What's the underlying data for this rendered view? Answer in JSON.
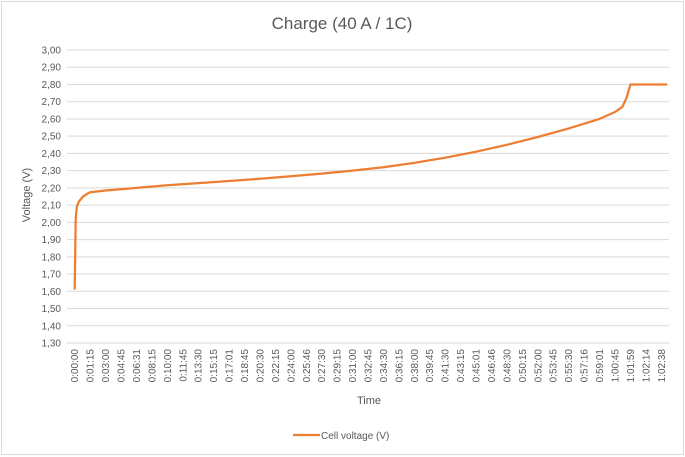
{
  "chart_data": {
    "type": "line",
    "title": "Charge (40 A / 1C)",
    "xlabel": "Time",
    "ylabel": "Voltage (V)",
    "ylim": [
      1.3,
      3.0
    ],
    "yticks": [
      "1,30",
      "1,40",
      "1,50",
      "1,60",
      "1,70",
      "1,80",
      "1,90",
      "2,00",
      "2,10",
      "2,20",
      "2,30",
      "2,40",
      "2,50",
      "2,60",
      "2,70",
      "2,80",
      "2,90",
      "3,00"
    ],
    "xticks": [
      "0:00:00",
      "0:01:15",
      "0:03:00",
      "0:04:45",
      "0:06:31",
      "0:08:15",
      "0:10:00",
      "0:11:45",
      "0:13:30",
      "0:15:15",
      "0:17:01",
      "0:18:45",
      "0:20:30",
      "0:22:15",
      "0:24:00",
      "0:25:46",
      "0:27:30",
      "0:29:15",
      "0:31:00",
      "0:32:45",
      "0:34:30",
      "0:36:15",
      "0:38:00",
      "0:39:45",
      "0:41:30",
      "0:43:15",
      "0:45:01",
      "0:46:46",
      "0:48:30",
      "0:50:15",
      "0:52:00",
      "0:53:45",
      "0:55:30",
      "0:57:16",
      "0:59:01",
      "1:00:45",
      "1:01:59",
      "1:02:14",
      "1:02:38"
    ],
    "grid": true,
    "legend_position": "bottom",
    "series": [
      {
        "name": "Cell voltage (V)",
        "color": "#ed7d31",
        "points": [
          [
            "0:00:00",
            1.61
          ],
          [
            "0:00:05",
            2.02
          ],
          [
            "0:00:10",
            2.09
          ],
          [
            "0:00:20",
            2.12
          ],
          [
            "0:00:40",
            2.15
          ],
          [
            "0:01:00",
            2.165
          ],
          [
            "0:01:15",
            2.175
          ],
          [
            "0:03:00",
            2.185
          ],
          [
            "0:06:31",
            2.2
          ],
          [
            "0:10:00",
            2.215
          ],
          [
            "0:13:30",
            2.228
          ],
          [
            "0:17:01",
            2.24
          ],
          [
            "0:20:30",
            2.253
          ],
          [
            "0:24:00",
            2.268
          ],
          [
            "0:27:30",
            2.283
          ],
          [
            "0:31:00",
            2.3
          ],
          [
            "0:34:30",
            2.32
          ],
          [
            "0:38:00",
            2.345
          ],
          [
            "0:41:30",
            2.375
          ],
          [
            "0:45:01",
            2.41
          ],
          [
            "0:48:30",
            2.45
          ],
          [
            "0:52:00",
            2.495
          ],
          [
            "0:55:30",
            2.545
          ],
          [
            "0:59:01",
            2.6
          ],
          [
            "1:00:45",
            2.64
          ],
          [
            "1:01:20",
            2.67
          ],
          [
            "1:01:40",
            2.72
          ],
          [
            "1:01:59",
            2.8
          ],
          [
            "1:02:14",
            2.8
          ],
          [
            "1:02:38",
            2.8
          ],
          [
            "1:02:38 end",
            2.8
          ]
        ]
      }
    ]
  }
}
